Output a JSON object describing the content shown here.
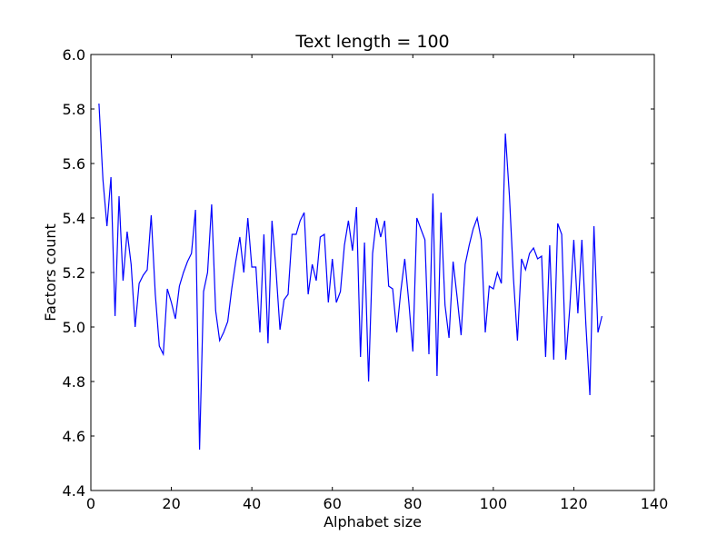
{
  "chart_data": {
    "type": "line",
    "title": "Text length = 100",
    "xlabel": "Alphabet size",
    "ylabel": "Factors count",
    "xlim": [
      0,
      140
    ],
    "ylim": [
      4.4,
      6.0
    ],
    "xticks": [
      "0",
      "20",
      "40",
      "60",
      "80",
      "100",
      "120",
      "140"
    ],
    "yticks": [
      "4.4",
      "4.6",
      "4.8",
      "5.0",
      "5.2",
      "5.4",
      "5.6",
      "5.8",
      "6.0"
    ],
    "grid": false,
    "series": [
      {
        "color": "#0000ff",
        "x": [
          2,
          3,
          4,
          5,
          6,
          7,
          8,
          9,
          10,
          11,
          12,
          13,
          14,
          15,
          16,
          17,
          18,
          19,
          20,
          21,
          22,
          23,
          24,
          25,
          26,
          27,
          28,
          29,
          30,
          31,
          32,
          33,
          34,
          35,
          36,
          37,
          38,
          39,
          40,
          41,
          42,
          43,
          44,
          45,
          46,
          47,
          48,
          49,
          50,
          51,
          52,
          53,
          54,
          55,
          56,
          57,
          58,
          59,
          60,
          61,
          62,
          63,
          64,
          65,
          66,
          67,
          68,
          69,
          70,
          71,
          72,
          73,
          74,
          75,
          76,
          77,
          78,
          79,
          80,
          81,
          82,
          83,
          84,
          85,
          86,
          87,
          88,
          89,
          90,
          91,
          92,
          93,
          94,
          95,
          96,
          97,
          98,
          99,
          100,
          101,
          102,
          103,
          104,
          105,
          106,
          107,
          108,
          109,
          110,
          111,
          112,
          113,
          114,
          115,
          116,
          117,
          118,
          119,
          120,
          121,
          122,
          123,
          124,
          125,
          126,
          127
        ],
        "y": [
          5.82,
          5.54,
          5.37,
          5.55,
          5.04,
          5.48,
          5.17,
          5.35,
          5.23,
          5.0,
          5.16,
          5.19,
          5.21,
          5.41,
          5.12,
          4.93,
          4.9,
          5.14,
          5.09,
          5.03,
          5.15,
          5.2,
          5.24,
          5.27,
          5.43,
          4.55,
          5.13,
          5.2,
          5.45,
          5.06,
          4.95,
          4.98,
          5.02,
          5.14,
          5.24,
          5.33,
          5.2,
          5.4,
          5.22,
          5.22,
          4.98,
          5.34,
          4.94,
          5.39,
          5.21,
          4.99,
          5.1,
          5.12,
          5.34,
          5.34,
          5.39,
          5.42,
          5.12,
          5.23,
          5.17,
          5.33,
          5.34,
          5.09,
          5.25,
          5.09,
          5.13,
          5.3,
          5.39,
          5.28,
          5.44,
          4.89,
          5.31,
          4.8,
          5.27,
          5.4,
          5.33,
          5.39,
          5.15,
          5.14,
          4.98,
          5.13,
          5.25,
          5.09,
          4.91,
          5.4,
          5.36,
          5.32,
          4.9,
          5.49,
          4.82,
          5.42,
          5.08,
          4.96,
          5.24,
          5.11,
          4.97,
          5.23,
          5.3,
          5.36,
          5.4,
          5.32,
          4.98,
          5.15,
          5.14,
          5.2,
          5.16,
          5.71,
          5.48,
          5.18,
          4.95,
          5.25,
          5.21,
          5.27,
          5.29,
          5.25,
          5.26,
          4.89,
          5.3,
          4.88,
          5.38,
          5.34,
          4.88,
          5.07,
          5.32,
          5.05,
          5.32,
          5.01,
          4.75,
          5.37,
          4.98,
          5.04
        ]
      }
    ]
  }
}
